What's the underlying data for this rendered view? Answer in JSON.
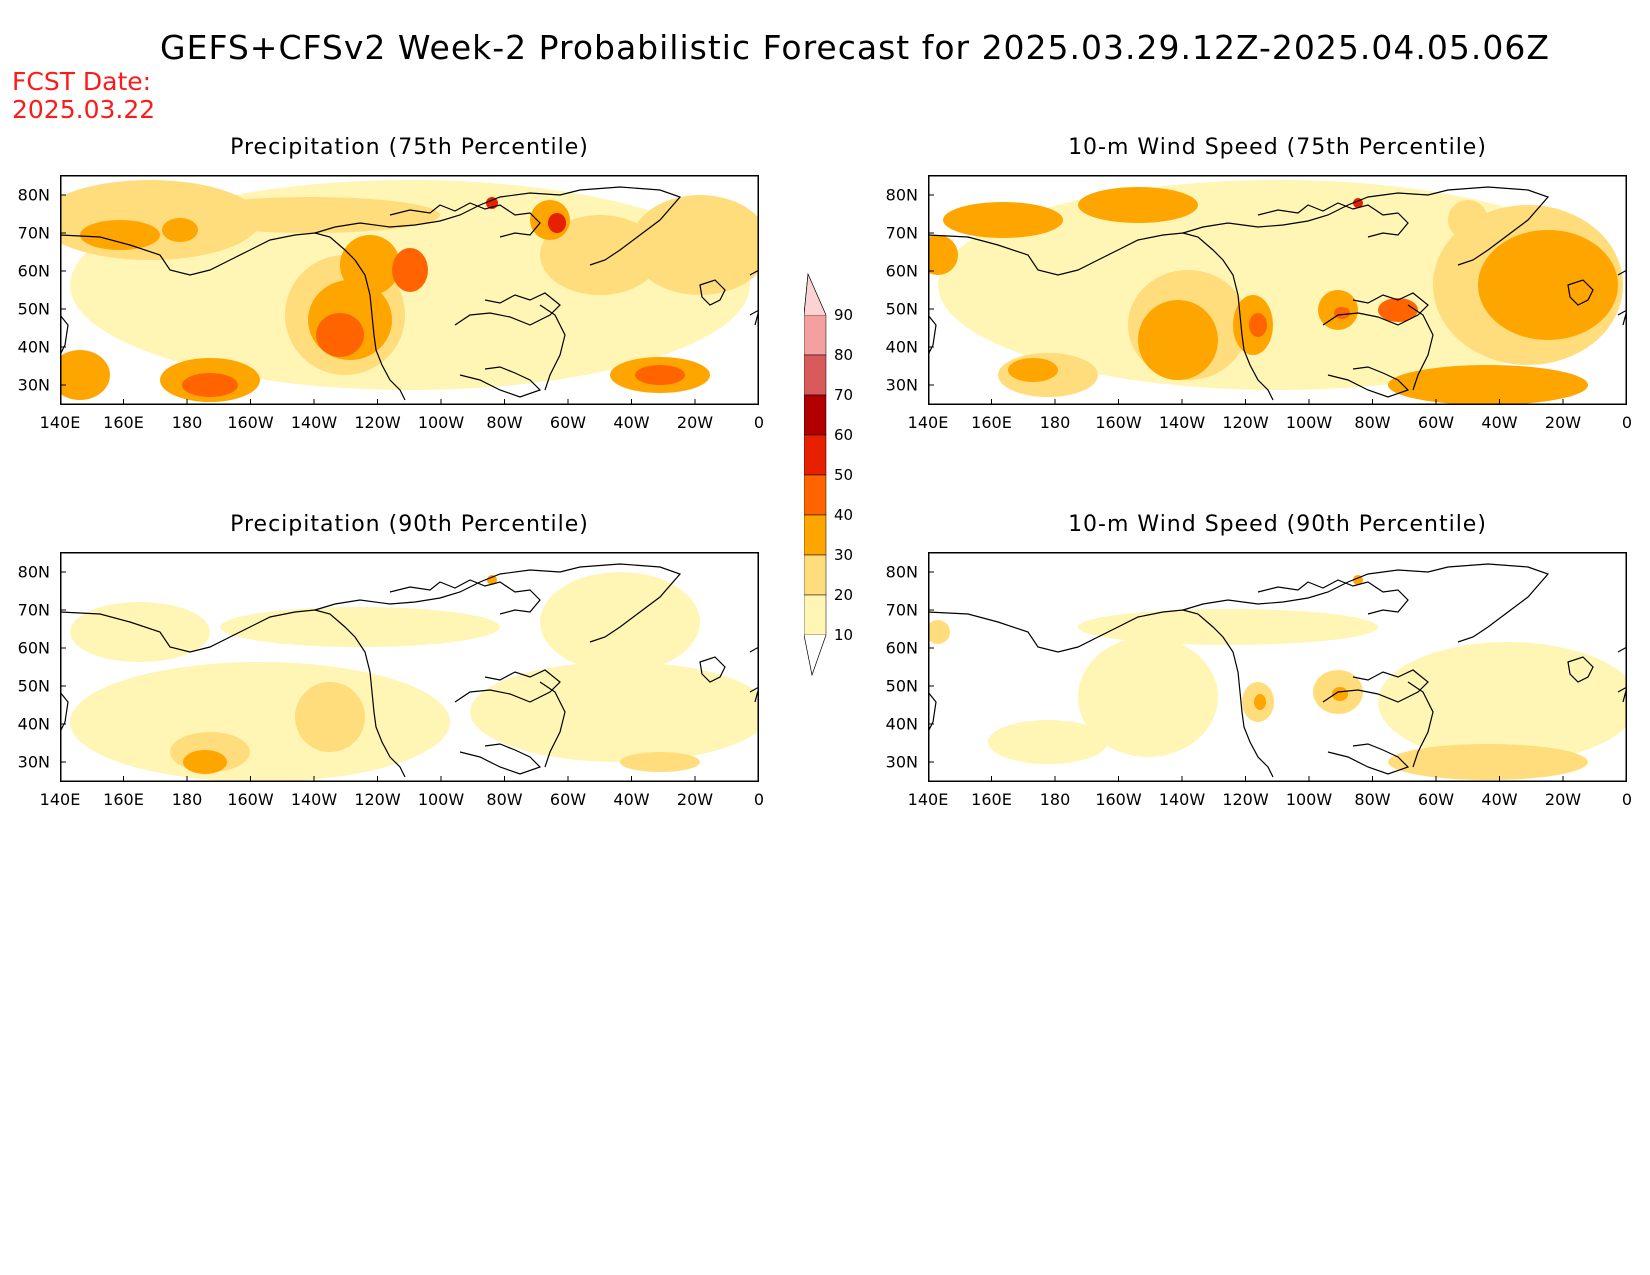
{
  "header": {
    "title": "GEFS+CFSv2 Week-2 Probabilistic Forecast for 2025.03.29.12Z-2025.04.05.06Z",
    "fcst_line1": "FCST Date:",
    "fcst_line2": "2025.03.22"
  },
  "axes": {
    "lat_labels": [
      "80N",
      "70N",
      "60N",
      "50N",
      "40N",
      "30N"
    ],
    "lon_labels": [
      "140E",
      "160E",
      "180",
      "160W",
      "140W",
      "120W",
      "100W",
      "80W",
      "60W",
      "40W",
      "20W",
      "0"
    ]
  },
  "panels": [
    {
      "title": "Precipitation (75th Percentile)"
    },
    {
      "title": "10-m Wind Speed (75th Percentile)"
    },
    {
      "title": "Precipitation (90th Percentile)"
    },
    {
      "title": "10-m Wind Speed (90th Percentile)"
    }
  ],
  "colorbar": {
    "labels": [
      "90",
      "80",
      "70",
      "60",
      "50",
      "40",
      "30",
      "20",
      "10"
    ],
    "colors": [
      "#fbd3d3",
      "#f4a0a0",
      "#d95a5a",
      "#b00000",
      "#e62000",
      "#ff6400",
      "#ffa500",
      "#ffdc7c",
      "#fff5b4"
    ],
    "units": "%"
  }
}
